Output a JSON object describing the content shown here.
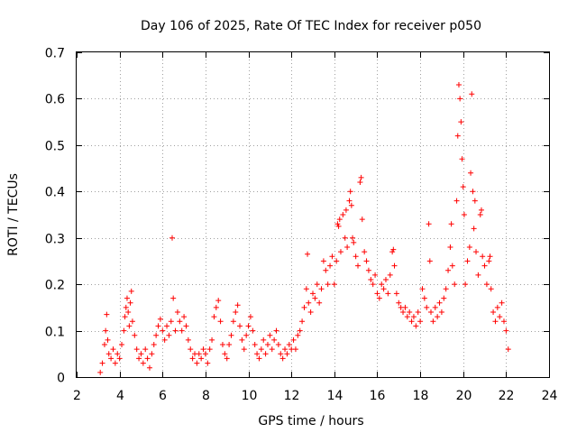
{
  "chart_data": {
    "type": "scatter",
    "title": "Day 106 of 2025, Rate Of TEC Index for receiver p050",
    "xlabel": "GPS time / hours",
    "ylabel": "ROTI / TECUs",
    "xlim": [
      2,
      24
    ],
    "ylim": [
      0,
      0.7
    ],
    "x_ticks": [
      "2",
      "4",
      "6",
      "8",
      "10",
      "12",
      "14",
      "16",
      "18",
      "20",
      "22",
      "24"
    ],
    "y_ticks": [
      "0",
      "0.1",
      "0.2",
      "0.3",
      "0.4",
      "0.5",
      "0.6",
      "0.7"
    ],
    "grid": true,
    "marker": "plus",
    "series": [
      {
        "color": "#ff0000",
        "points": [
          [
            3.1,
            0.01
          ],
          [
            3.2,
            0.03
          ],
          [
            3.3,
            0.07
          ],
          [
            3.35,
            0.1
          ],
          [
            3.4,
            0.135
          ],
          [
            3.45,
            0.08
          ],
          [
            3.5,
            0.05
          ],
          [
            3.6,
            0.04
          ],
          [
            3.7,
            0.06
          ],
          [
            3.8,
            0.03
          ],
          [
            3.9,
            0.05
          ],
          [
            4.0,
            0.04
          ],
          [
            4.1,
            0.07
          ],
          [
            4.2,
            0.1
          ],
          [
            4.25,
            0.13
          ],
          [
            4.3,
            0.15
          ],
          [
            4.35,
            0.17
          ],
          [
            4.4,
            0.14
          ],
          [
            4.45,
            0.11
          ],
          [
            4.5,
            0.16
          ],
          [
            4.55,
            0.185
          ],
          [
            4.6,
            0.12
          ],
          [
            4.7,
            0.09
          ],
          [
            4.8,
            0.06
          ],
          [
            4.9,
            0.04
          ],
          [
            5.0,
            0.05
          ],
          [
            5.1,
            0.03
          ],
          [
            5.2,
            0.06
          ],
          [
            5.3,
            0.04
          ],
          [
            5.4,
            0.02
          ],
          [
            5.5,
            0.05
          ],
          [
            5.6,
            0.07
          ],
          [
            5.7,
            0.09
          ],
          [
            5.8,
            0.11
          ],
          [
            5.9,
            0.125
          ],
          [
            6.0,
            0.1
          ],
          [
            6.1,
            0.08
          ],
          [
            6.2,
            0.11
          ],
          [
            6.3,
            0.09
          ],
          [
            6.4,
            0.12
          ],
          [
            6.45,
            0.3
          ],
          [
            6.5,
            0.17
          ],
          [
            6.6,
            0.1
          ],
          [
            6.7,
            0.14
          ],
          [
            6.8,
            0.12
          ],
          [
            6.9,
            0.1
          ],
          [
            7.0,
            0.13
          ],
          [
            7.1,
            0.11
          ],
          [
            7.2,
            0.08
          ],
          [
            7.3,
            0.06
          ],
          [
            7.4,
            0.04
          ],
          [
            7.5,
            0.05
          ],
          [
            7.6,
            0.03
          ],
          [
            7.7,
            0.05
          ],
          [
            7.8,
            0.04
          ],
          [
            7.9,
            0.06
          ],
          [
            8.0,
            0.05
          ],
          [
            8.1,
            0.03
          ],
          [
            8.2,
            0.06
          ],
          [
            8.3,
            0.08
          ],
          [
            8.4,
            0.13
          ],
          [
            8.5,
            0.15
          ],
          [
            8.6,
            0.165
          ],
          [
            8.7,
            0.12
          ],
          [
            8.8,
            0.07
          ],
          [
            8.9,
            0.05
          ],
          [
            9.0,
            0.04
          ],
          [
            9.1,
            0.07
          ],
          [
            9.2,
            0.09
          ],
          [
            9.3,
            0.12
          ],
          [
            9.4,
            0.14
          ],
          [
            9.5,
            0.155
          ],
          [
            9.6,
            0.11
          ],
          [
            9.7,
            0.08
          ],
          [
            9.8,
            0.06
          ],
          [
            9.9,
            0.09
          ],
          [
            10.0,
            0.11
          ],
          [
            10.1,
            0.13
          ],
          [
            10.2,
            0.1
          ],
          [
            10.3,
            0.07
          ],
          [
            10.4,
            0.05
          ],
          [
            10.5,
            0.04
          ],
          [
            10.6,
            0.06
          ],
          [
            10.7,
            0.08
          ],
          [
            10.8,
            0.05
          ],
          [
            10.9,
            0.07
          ],
          [
            11.0,
            0.09
          ],
          [
            11.1,
            0.06
          ],
          [
            11.2,
            0.08
          ],
          [
            11.3,
            0.1
          ],
          [
            11.4,
            0.07
          ],
          [
            11.5,
            0.05
          ],
          [
            11.6,
            0.04
          ],
          [
            11.7,
            0.06
          ],
          [
            11.8,
            0.05
          ],
          [
            11.9,
            0.07
          ],
          [
            12.0,
            0.06
          ],
          [
            12.1,
            0.08
          ],
          [
            12.2,
            0.06
          ],
          [
            12.3,
            0.09
          ],
          [
            12.4,
            0.1
          ],
          [
            12.5,
            0.12
          ],
          [
            12.6,
            0.15
          ],
          [
            12.7,
            0.19
          ],
          [
            12.75,
            0.265
          ],
          [
            12.8,
            0.16
          ],
          [
            12.9,
            0.14
          ],
          [
            13.0,
            0.18
          ],
          [
            13.1,
            0.17
          ],
          [
            13.2,
            0.2
          ],
          [
            13.3,
            0.16
          ],
          [
            13.4,
            0.19
          ],
          [
            13.5,
            0.25
          ],
          [
            13.6,
            0.23
          ],
          [
            13.7,
            0.2
          ],
          [
            13.8,
            0.24
          ],
          [
            13.9,
            0.26
          ],
          [
            14.0,
            0.2
          ],
          [
            14.1,
            0.25
          ],
          [
            14.15,
            0.33
          ],
          [
            14.2,
            0.325
          ],
          [
            14.25,
            0.34
          ],
          [
            14.3,
            0.27
          ],
          [
            14.4,
            0.35
          ],
          [
            14.5,
            0.3
          ],
          [
            14.55,
            0.36
          ],
          [
            14.6,
            0.28
          ],
          [
            14.7,
            0.38
          ],
          [
            14.75,
            0.4
          ],
          [
            14.8,
            0.37
          ],
          [
            14.85,
            0.3
          ],
          [
            14.9,
            0.29
          ],
          [
            15.0,
            0.26
          ],
          [
            15.1,
            0.24
          ],
          [
            15.2,
            0.42
          ],
          [
            15.25,
            0.43
          ],
          [
            15.3,
            0.34
          ],
          [
            15.4,
            0.27
          ],
          [
            15.5,
            0.25
          ],
          [
            15.6,
            0.23
          ],
          [
            15.7,
            0.21
          ],
          [
            15.8,
            0.2
          ],
          [
            15.9,
            0.22
          ],
          [
            16.0,
            0.18
          ],
          [
            16.1,
            0.17
          ],
          [
            16.2,
            0.2
          ],
          [
            16.3,
            0.19
          ],
          [
            16.4,
            0.21
          ],
          [
            16.5,
            0.18
          ],
          [
            16.6,
            0.22
          ],
          [
            16.7,
            0.27
          ],
          [
            16.75,
            0.275
          ],
          [
            16.8,
            0.24
          ],
          [
            16.9,
            0.18
          ],
          [
            17.0,
            0.16
          ],
          [
            17.1,
            0.15
          ],
          [
            17.2,
            0.14
          ],
          [
            17.3,
            0.15
          ],
          [
            17.4,
            0.13
          ],
          [
            17.5,
            0.14
          ],
          [
            17.6,
            0.12
          ],
          [
            17.7,
            0.13
          ],
          [
            17.8,
            0.11
          ],
          [
            17.9,
            0.14
          ],
          [
            18.0,
            0.12
          ],
          [
            18.1,
            0.19
          ],
          [
            18.2,
            0.17
          ],
          [
            18.3,
            0.15
          ],
          [
            18.4,
            0.33
          ],
          [
            18.45,
            0.25
          ],
          [
            18.5,
            0.14
          ],
          [
            18.6,
            0.12
          ],
          [
            18.7,
            0.15
          ],
          [
            18.8,
            0.13
          ],
          [
            18.9,
            0.16
          ],
          [
            19.0,
            0.14
          ],
          [
            19.1,
            0.17
          ],
          [
            19.2,
            0.19
          ],
          [
            19.3,
            0.23
          ],
          [
            19.4,
            0.28
          ],
          [
            19.45,
            0.33
          ],
          [
            19.5,
            0.24
          ],
          [
            19.6,
            0.2
          ],
          [
            19.7,
            0.38
          ],
          [
            19.75,
            0.52
          ],
          [
            19.8,
            0.63
          ],
          [
            19.85,
            0.6
          ],
          [
            19.9,
            0.55
          ],
          [
            19.95,
            0.47
          ],
          [
            20.0,
            0.41
          ],
          [
            20.05,
            0.35
          ],
          [
            20.1,
            0.2
          ],
          [
            20.2,
            0.25
          ],
          [
            20.3,
            0.28
          ],
          [
            20.35,
            0.44
          ],
          [
            20.4,
            0.61
          ],
          [
            20.45,
            0.4
          ],
          [
            20.5,
            0.32
          ],
          [
            20.55,
            0.38
          ],
          [
            20.6,
            0.27
          ],
          [
            20.7,
            0.22
          ],
          [
            20.8,
            0.35
          ],
          [
            20.85,
            0.36
          ],
          [
            20.9,
            0.26
          ],
          [
            21.0,
            0.24
          ],
          [
            21.1,
            0.2
          ],
          [
            21.2,
            0.25
          ],
          [
            21.25,
            0.26
          ],
          [
            21.3,
            0.19
          ],
          [
            21.4,
            0.14
          ],
          [
            21.5,
            0.12
          ],
          [
            21.6,
            0.15
          ],
          [
            21.7,
            0.13
          ],
          [
            21.8,
            0.16
          ],
          [
            21.9,
            0.12
          ],
          [
            22.0,
            0.1
          ],
          [
            22.1,
            0.06
          ]
        ]
      }
    ]
  }
}
